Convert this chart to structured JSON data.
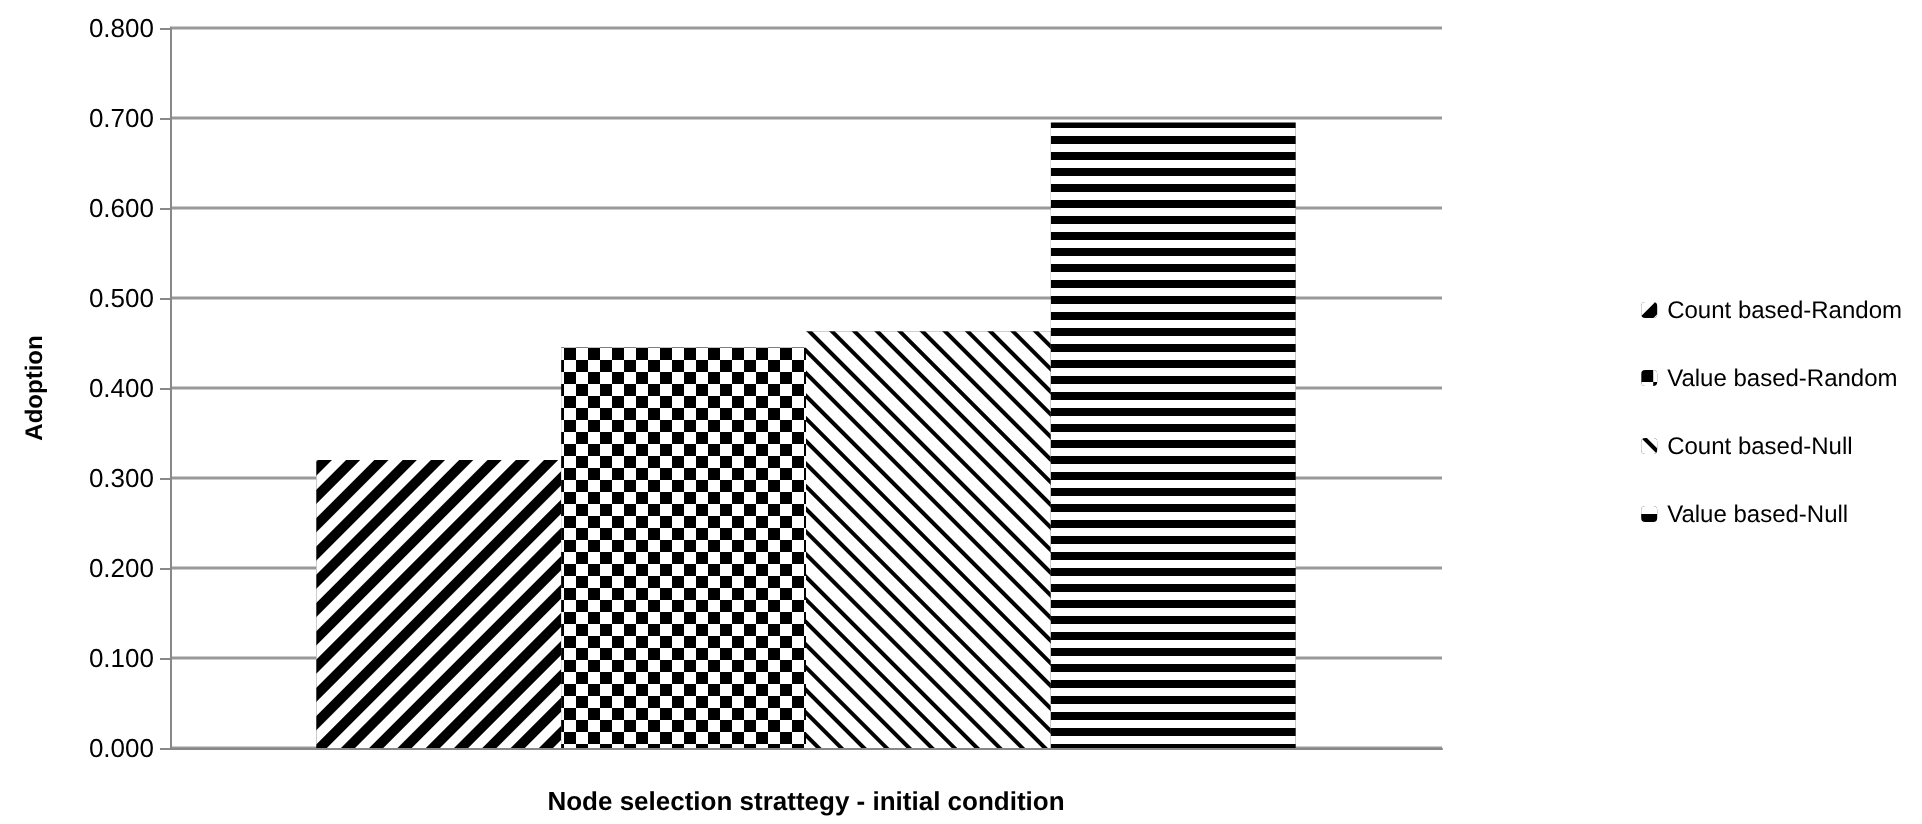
{
  "chart_data": {
    "type": "bar",
    "xlabel": "Node selection strattegy - initial condition",
    "ylabel": "Adoption",
    "categories": [
      null
    ],
    "series": [
      {
        "name": "Count based-Random",
        "color": "#000000",
        "values": [
          0.32
        ]
      },
      {
        "name": "Value based-Random",
        "color": "#000000",
        "values": [
          0.445
        ]
      },
      {
        "name": "Count based-Null",
        "color": "#000000",
        "values": [
          0.463
        ]
      },
      {
        "name": "Value based-Null",
        "color": "#000000",
        "values": [
          0.695
        ]
      }
    ],
    "ylim": [
      0,
      0.8
    ],
    "yticks": [
      {
        "value": 0,
        "label": "0.000"
      },
      {
        "value": 0.1,
        "label": "0.100"
      },
      {
        "value": 0.2,
        "label": "0.200"
      },
      {
        "value": 0.3,
        "label": "0.300"
      },
      {
        "value": 0.4,
        "label": "0.400"
      },
      {
        "value": 0.5,
        "label": "0.500"
      },
      {
        "value": 0.6,
        "label": "0.600"
      },
      {
        "value": 0.7,
        "label": "0.700"
      },
      {
        "value": 0.8,
        "label": "0.800"
      }
    ],
    "grid": "y",
    "legend": "right"
  }
}
